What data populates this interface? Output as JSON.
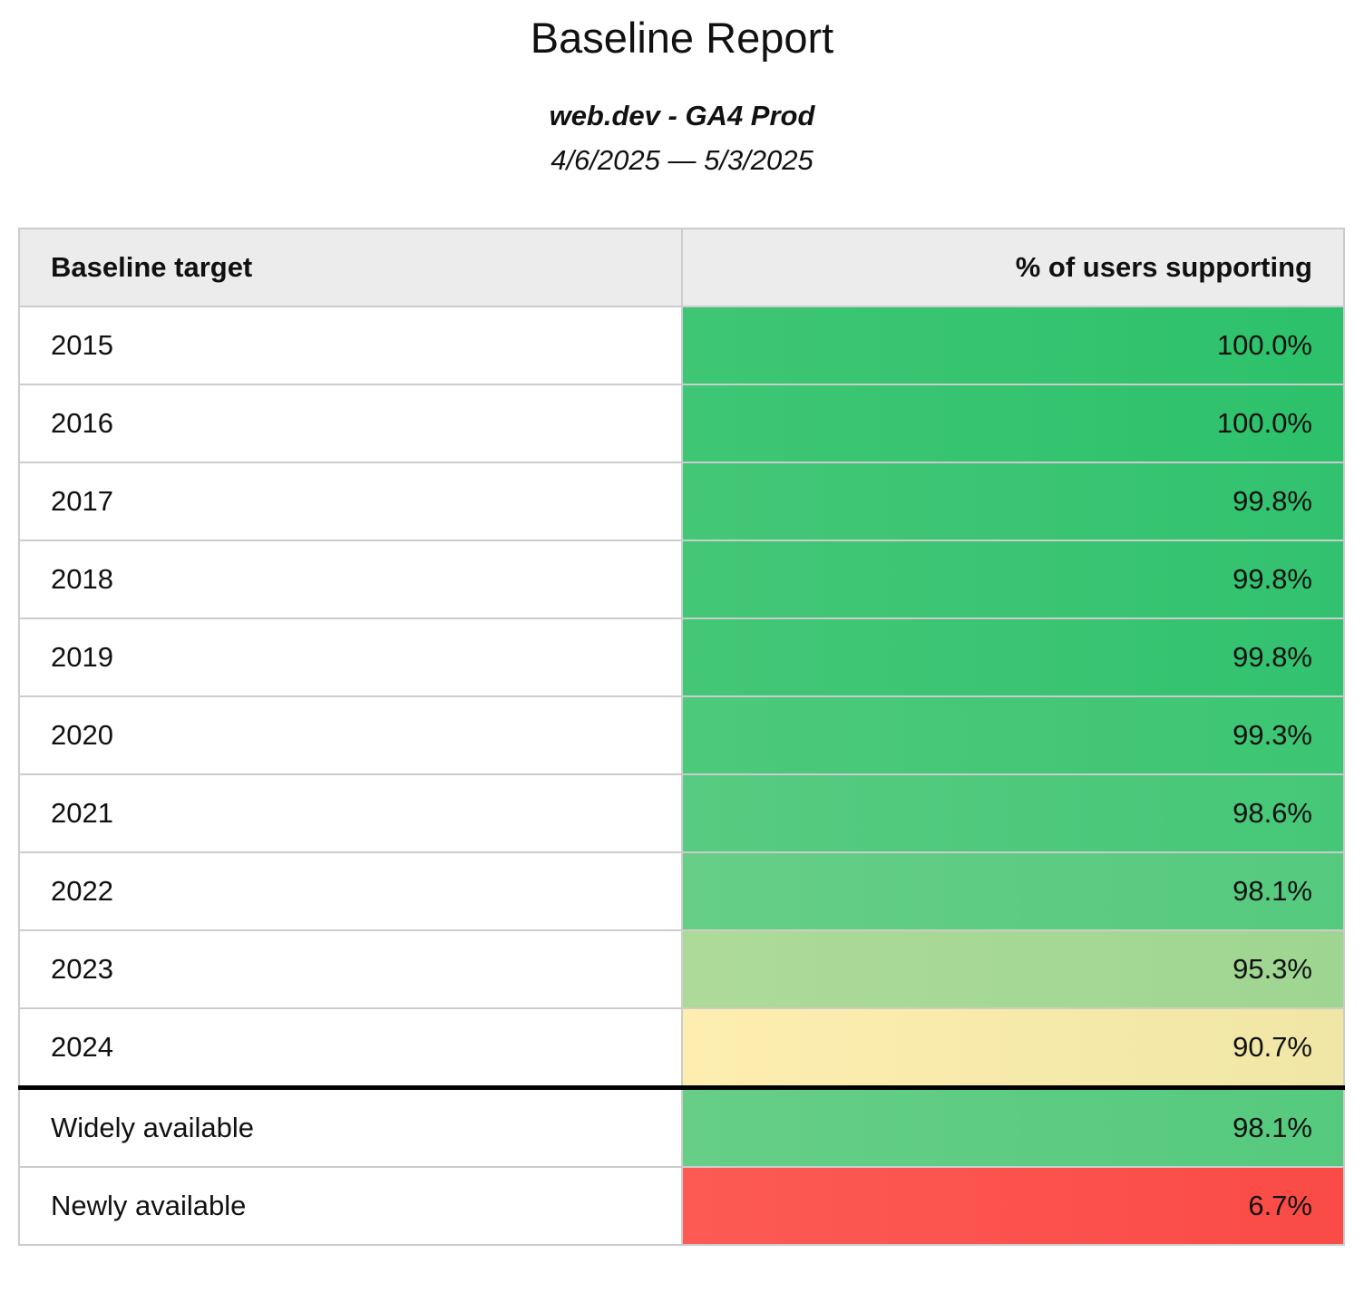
{
  "report": {
    "title": "Baseline Report",
    "subtitle": "web.dev - GA4 Prod",
    "date_range": "4/6/2025 — 5/3/2025"
  },
  "table": {
    "columns": [
      "Baseline target",
      "% of users supporting"
    ],
    "rows": [
      {
        "target": "2015",
        "value": "100.0%",
        "bg_from": "#3ec674",
        "bg_to": "#2dc16c"
      },
      {
        "target": "2016",
        "value": "100.0%",
        "bg_from": "#3ec674",
        "bg_to": "#2dc16c"
      },
      {
        "target": "2017",
        "value": "99.8%",
        "bg_from": "#43c777",
        "bg_to": "#32c26f"
      },
      {
        "target": "2018",
        "value": "99.8%",
        "bg_from": "#43c777",
        "bg_to": "#32c26f"
      },
      {
        "target": "2019",
        "value": "99.8%",
        "bg_from": "#43c777",
        "bg_to": "#32c26f"
      },
      {
        "target": "2020",
        "value": "99.3%",
        "bg_from": "#4dc97b",
        "bg_to": "#3cc573"
      },
      {
        "target": "2021",
        "value": "98.6%",
        "bg_from": "#57cb81",
        "bg_to": "#46c778"
      },
      {
        "target": "2022",
        "value": "98.1%",
        "bg_from": "#66ce87",
        "bg_to": "#55ca7e"
      },
      {
        "target": "2023",
        "value": "95.3%",
        "bg_from": "#aeda99",
        "bg_to": "#9ed691"
      },
      {
        "target": "2024",
        "value": "90.7%",
        "bg_from": "#fdeeb0",
        "bg_to": "#f0e6a5"
      },
      {
        "target": "Widely available",
        "value": "98.1%",
        "bg_from": "#66ce87",
        "bg_to": "#55ca7e",
        "section_start": true
      },
      {
        "target": "Newly available",
        "value": "6.7%",
        "bg_from": "#fd5a54",
        "bg_to": "#fa4b46"
      }
    ]
  },
  "colors": {
    "header_background": "#ececec",
    "grid_border": "#cccccc",
    "section_divider": "#000000",
    "good_green": "#3ec674",
    "warn_yellow": "#f5e8a8",
    "bad_red": "#fb4f4a"
  }
}
